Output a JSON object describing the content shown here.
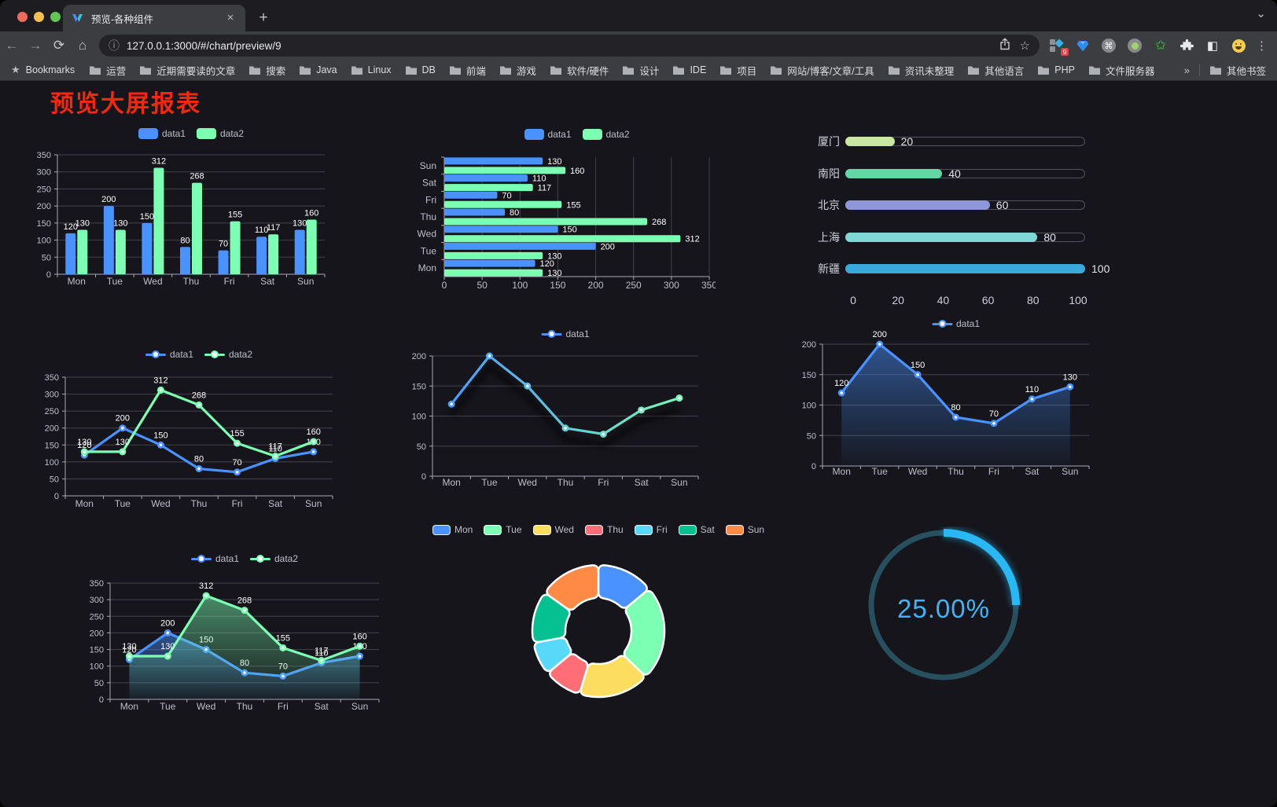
{
  "browser": {
    "tab_title": "预览-各种组件",
    "new_tab_label": "+",
    "url": "127.0.0.1:3000/#/chart/preview/9",
    "extension_badge": "9",
    "bookmarks_label": "Bookmarks",
    "bookmarks": [
      "运营",
      "近期需要读的文章",
      "搜索",
      "Java",
      "Linux",
      "DB",
      "前端",
      "游戏",
      "软件/硬件",
      "设计",
      "IDE",
      "项目",
      "网站/博客/文章/工具",
      "资讯未整理",
      "其他语言",
      "PHP",
      "文件服务器"
    ],
    "bookmarks_overflow": "»",
    "other_bookmarks": "其他书签"
  },
  "page": {
    "title": "预览大屏报表",
    "title_color": "#f5270f"
  },
  "chart_data": [
    {
      "id": "bar1",
      "type": "bar",
      "categories": [
        "Mon",
        "Tue",
        "Wed",
        "Thu",
        "Fri",
        "Sat",
        "Sun"
      ],
      "series": [
        {
          "name": "data1",
          "color": "#4992ff",
          "values": [
            120,
            200,
            150,
            80,
            70,
            110,
            130
          ]
        },
        {
          "name": "data2",
          "color": "#7cffb2",
          "values": [
            130,
            130,
            312,
            268,
            155,
            117,
            160
          ]
        }
      ],
      "ylim": [
        0,
        350
      ],
      "ytick": 50,
      "grid": true,
      "legend_position": "top",
      "labels": true
    },
    {
      "id": "hbar",
      "type": "hbar",
      "categories": [
        "Mon",
        "Tue",
        "Wed",
        "Thu",
        "Fri",
        "Sat",
        "Sun"
      ],
      "series": [
        {
          "name": "data1",
          "color": "#4992ff",
          "values": [
            120,
            200,
            150,
            80,
            70,
            110,
            130
          ]
        },
        {
          "name": "data2",
          "color": "#7cffb2",
          "values": [
            130,
            130,
            312,
            268,
            155,
            117,
            160
          ]
        }
      ],
      "xlim": [
        0,
        350
      ],
      "xtick": 50,
      "grid": true,
      "legend_position": "top",
      "labels": true
    },
    {
      "id": "progress",
      "type": "progress_bars",
      "max": 100,
      "axis_ticks": [
        0,
        20,
        40,
        60,
        80,
        100
      ],
      "items": [
        {
          "label": "厦门",
          "value": 20,
          "color": "#c9e8a2"
        },
        {
          "label": "南阳",
          "value": 40,
          "color": "#62d9a5"
        },
        {
          "label": "北京",
          "value": 60,
          "color": "#8f96d9"
        },
        {
          "label": "上海",
          "value": 80,
          "color": "#7fd8d6"
        },
        {
          "label": "新疆",
          "value": 100,
          "color": "#39a9dc"
        }
      ]
    },
    {
      "id": "line1",
      "type": "line",
      "categories": [
        "Mon",
        "Tue",
        "Wed",
        "Thu",
        "Fri",
        "Sat",
        "Sun"
      ],
      "series": [
        {
          "name": "data1",
          "color": "#4992ff",
          "values": [
            120,
            200,
            150,
            80,
            70,
            110,
            130
          ]
        },
        {
          "name": "data2",
          "color": "#7cffb2",
          "values": [
            130,
            130,
            312,
            268,
            155,
            117,
            160
          ]
        }
      ],
      "ylim": [
        0,
        350
      ],
      "ytick": 50,
      "grid": true,
      "labels": true,
      "legend_icon": "line"
    },
    {
      "id": "line2",
      "type": "line",
      "categories": [
        "Mon",
        "Tue",
        "Wed",
        "Thu",
        "Fri",
        "Sat",
        "Sun"
      ],
      "series": [
        {
          "name": "data1",
          "color": "#4992ff",
          "values": [
            120,
            200,
            150,
            80,
            70,
            110,
            130
          ]
        }
      ],
      "stroke_gradient": [
        "#4992ff",
        "#7cffb2"
      ],
      "shadow": true,
      "ylim": [
        0,
        200
      ],
      "ytick": 50,
      "grid": true,
      "labels": false,
      "legend_icon": "line"
    },
    {
      "id": "area1",
      "type": "line",
      "categories": [
        "Mon",
        "Tue",
        "Wed",
        "Thu",
        "Fri",
        "Sat",
        "Sun"
      ],
      "series": [
        {
          "name": "data1",
          "color": "#4992ff",
          "values": [
            120,
            200,
            150,
            80,
            70,
            110,
            130
          ],
          "area": true
        }
      ],
      "ylim": [
        0,
        200
      ],
      "ytick": 50,
      "grid": true,
      "labels": true,
      "legend_icon": "line"
    },
    {
      "id": "line3",
      "type": "line",
      "categories": [
        "Mon",
        "Tue",
        "Wed",
        "Thu",
        "Fri",
        "Sat",
        "Sun"
      ],
      "series": [
        {
          "name": "data1",
          "color": "#4992ff",
          "values": [
            120,
            200,
            150,
            80,
            70,
            110,
            130
          ],
          "area": true
        },
        {
          "name": "data2",
          "color": "#7cffb2",
          "values": [
            130,
            130,
            312,
            268,
            155,
            117,
            160
          ],
          "area": true
        }
      ],
      "ylim": [
        0,
        350
      ],
      "ytick": 50,
      "grid": true,
      "labels": true,
      "legend_icon": "line"
    },
    {
      "id": "donut",
      "type": "donut",
      "categories": [
        "Mon",
        "Tue",
        "Wed",
        "Thu",
        "Fri",
        "Sat",
        "Sun"
      ],
      "values": [
        120,
        200,
        150,
        80,
        70,
        110,
        130
      ],
      "colors": [
        "#4992ff",
        "#7cffb2",
        "#fddd60",
        "#ff6e76",
        "#58d9f9",
        "#05c091",
        "#ff8a45"
      ],
      "border_color": "#ffffff",
      "legend_position": "top"
    },
    {
      "id": "gauge",
      "type": "gauge",
      "value": 25,
      "label": "25.00%",
      "color": "#2ab8f5",
      "track_color": "#27505e",
      "text_color": "#42b4f4"
    }
  ]
}
